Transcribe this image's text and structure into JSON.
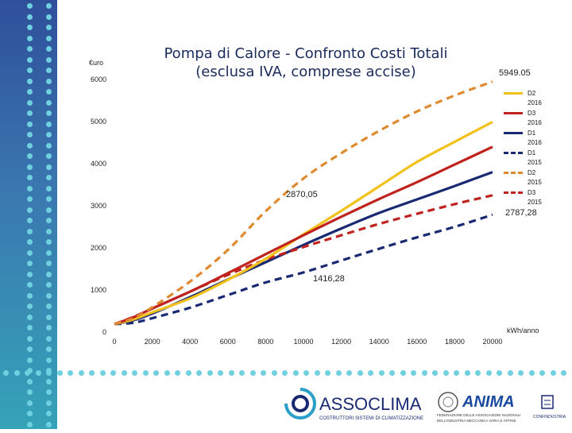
{
  "slide": {
    "title_line1": "Pompa di Calore - Confronto Costi Totali",
    "title_line2": "(esclusa IVA, comprese accise)",
    "y_unit": "€uro",
    "x_unit": "kWh/anno",
    "colors": {
      "band_top": "#2f4f9a",
      "band_bottom": "#35a3b8",
      "dots": "#6fd0e0"
    }
  },
  "logos": {
    "assoclima_name": "ASSOCLIMA",
    "assoclima_tagline": "COSTRUTTORI SISTEMI DI CLIMATIZZAZIONE",
    "anima_name": "ANIMA",
    "anima_tagline_1": "FEDERAZIONE DELLE ASSOCIAZIONI NAZIONALI",
    "anima_tagline_2": "DELL'INDUSTRIA MECCANICA VARIA E AFFINE",
    "confindustria_name": "CONFINDUSTRIA"
  },
  "chart_data": {
    "type": "line",
    "title": "Pompa di Calore - Confronto Costi Totali (esclusa IVA, comprese accise)",
    "xlabel": "kWh/anno",
    "ylabel": "€uro",
    "xlim": [
      0,
      20000
    ],
    "ylim": [
      0,
      6000
    ],
    "x_ticks": [
      "0",
      "2000",
      "4000",
      "6000",
      "8000",
      "10000",
      "12000",
      "14000",
      "16000",
      "18000",
      "20000"
    ],
    "y_ticks": [
      "0",
      "1000",
      "2000",
      "3000",
      "4000",
      "5000",
      "6000"
    ],
    "grid": false,
    "legend_position": "right",
    "x": [
      0,
      1000,
      2000,
      4000,
      6000,
      8000,
      10000,
      12000,
      14000,
      16000,
      18000,
      20000
    ],
    "series": [
      {
        "name": "D2 2016",
        "color": "#f2c21b",
        "dash": false,
        "values": [
          190,
          300,
          470,
          800,
          1240,
          1740,
          2320,
          2880,
          3460,
          4040,
          4520,
          4990
        ]
      },
      {
        "name": "D3 2016",
        "color": "#c0231e",
        "dash": false,
        "values": [
          190,
          350,
          560,
          960,
          1400,
          1850,
          2300,
          2740,
          3160,
          3560,
          3980,
          4400
        ]
      },
      {
        "name": "D1 2016",
        "color": "#1a2a72",
        "dash": false,
        "values": [
          190,
          280,
          440,
          830,
          1250,
          1660,
          2070,
          2460,
          2830,
          3150,
          3470,
          3800
        ]
      },
      {
        "name": "D1 2015",
        "color": "#1a2a72",
        "dash": true,
        "values": [
          190,
          220,
          330,
          580,
          880,
          1180,
          1416.28,
          1700,
          1980,
          2250,
          2500,
          2787.28
        ]
      },
      {
        "name": "D2 2015",
        "color": "#e08a30",
        "dash": true,
        "values": [
          190,
          330,
          590,
          1200,
          1950,
          2870.05,
          3650,
          4250,
          4780,
          5240,
          5620,
          5949.05
        ]
      },
      {
        "name": "D3 2015",
        "color": "#c0231e",
        "dash": true,
        "values": [
          190,
          360,
          560,
          960,
          1360,
          1720,
          2020,
          2300,
          2570,
          2810,
          3040,
          3250
        ]
      }
    ],
    "annotations": [
      "5949.05",
      "2870,05",
      "2787,28",
      "1416,28"
    ]
  }
}
